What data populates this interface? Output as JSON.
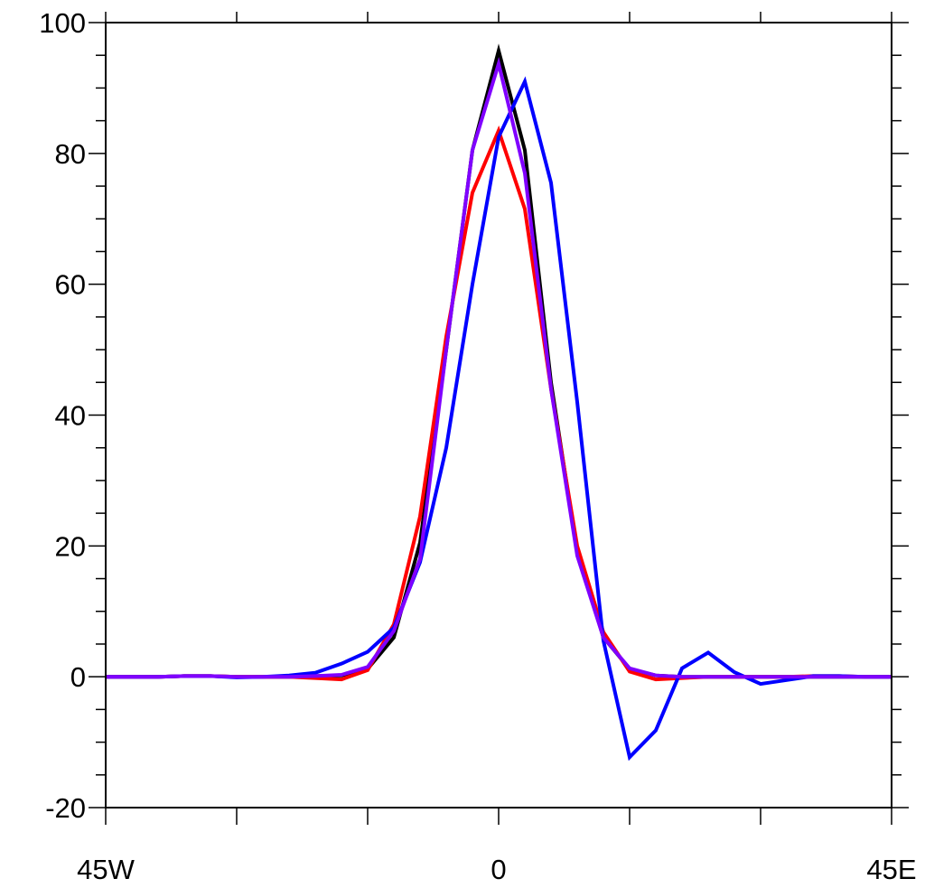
{
  "chart_data": {
    "type": "line",
    "title": "",
    "xlabel": "",
    "ylabel": "",
    "xlim": [
      -45,
      45
    ],
    "ylim": [
      -20,
      100
    ],
    "x_ticks": [
      {
        "value": -45,
        "label": "45W"
      },
      {
        "value": -30,
        "label": ""
      },
      {
        "value": -15,
        "label": ""
      },
      {
        "value": 0,
        "label": "0"
      },
      {
        "value": 15,
        "label": ""
      },
      {
        "value": 30,
        "label": ""
      },
      {
        "value": 45,
        "label": "45E"
      }
    ],
    "y_ticks": [
      {
        "value": 100,
        "label": "100"
      },
      {
        "value": 80,
        "label": "80"
      },
      {
        "value": 60,
        "label": "60"
      },
      {
        "value": 40,
        "label": "40"
      },
      {
        "value": 20,
        "label": "20"
      },
      {
        "value": 0,
        "label": "0"
      },
      {
        "value": -20,
        "label": "-20"
      }
    ],
    "y_minor_step": 5,
    "grid": false,
    "x": [
      -45,
      -42,
      -39,
      -36,
      -33,
      -30,
      -27,
      -24,
      -21,
      -18,
      -15,
      -12,
      -9,
      -6,
      -3,
      0,
      3,
      6,
      9,
      12,
      15,
      18,
      21,
      24,
      27,
      30,
      33,
      36,
      39,
      42,
      45
    ],
    "series": [
      {
        "color": "#000000",
        "values": [
          0,
          0,
          0,
          0.1,
          0.1,
          0,
          0,
          0,
          0.1,
          0.2,
          1.2,
          6,
          20.5,
          50,
          80.5,
          95.7,
          80.5,
          45,
          19,
          6,
          1.2,
          0.2,
          0,
          0,
          0,
          0,
          0,
          0,
          0,
          0,
          0
        ]
      },
      {
        "color": "#ff0000",
        "values": [
          0,
          0,
          0,
          0.1,
          0.1,
          0,
          0,
          0,
          -0.2,
          -0.4,
          1,
          8,
          24.5,
          52,
          74,
          83.5,
          71.5,
          44,
          20,
          6.8,
          0.8,
          -0.4,
          -0.2,
          0,
          0,
          0,
          0,
          0.1,
          0.1,
          0,
          0
        ]
      },
      {
        "color": "#0000ff",
        "values": [
          0,
          0,
          0,
          0.1,
          0.1,
          -0.1,
          0,
          0.2,
          0.6,
          2,
          3.8,
          7.5,
          17.5,
          35,
          60,
          82.5,
          91,
          75.5,
          42,
          5.5,
          -12.3,
          -8.2,
          1.3,
          3.7,
          0.7,
          -1.1,
          -0.5,
          0.1,
          0.1,
          0,
          0
        ]
      },
      {
        "color": "#8000ff",
        "values": [
          0,
          0,
          0,
          0.1,
          0.1,
          0,
          0,
          0,
          0.1,
          0.3,
          1.5,
          7,
          18,
          50,
          80.5,
          93.7,
          77,
          44,
          18.5,
          6,
          1.3,
          0.2,
          0,
          0,
          0,
          0,
          0,
          0,
          0,
          0,
          0
        ]
      }
    ]
  }
}
